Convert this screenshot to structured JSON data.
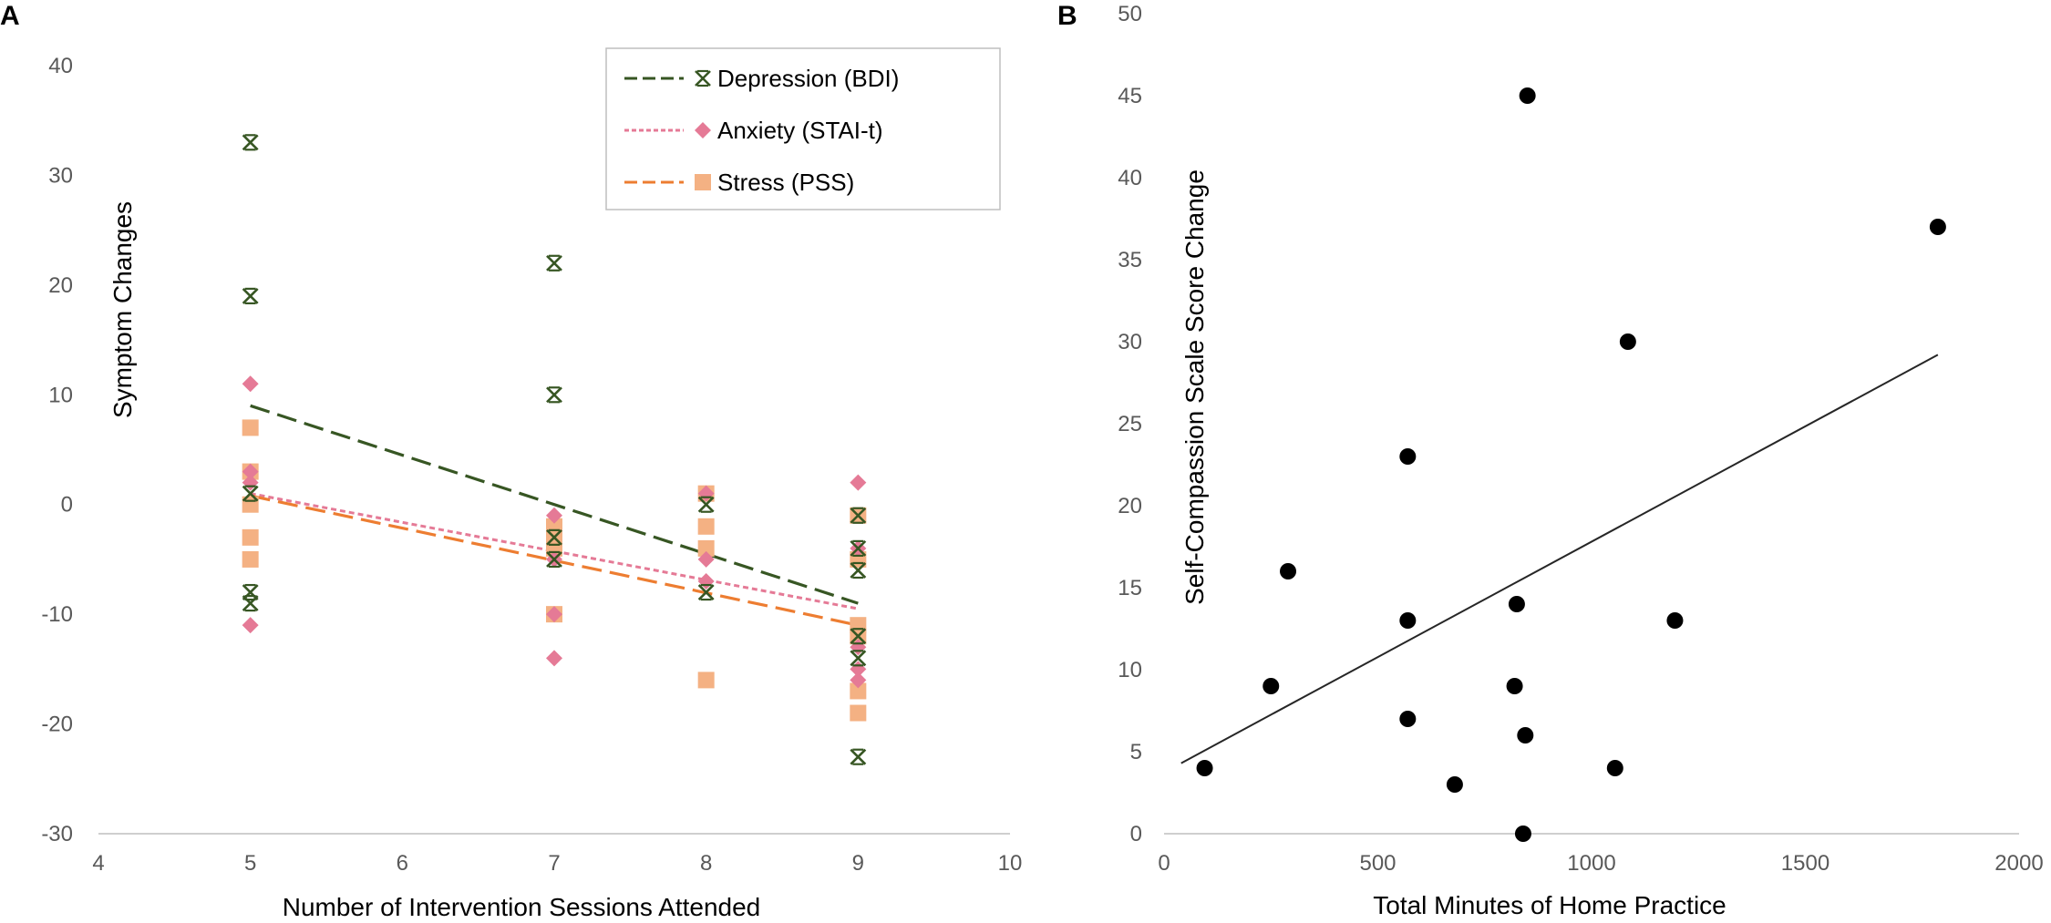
{
  "chart_data": [
    {
      "panel": "A",
      "type": "scatter",
      "xlabel": "Number of Intervention Sessions Attended",
      "ylabel": "Symptom Changes",
      "xlim": [
        4,
        10
      ],
      "ylim": [
        -30,
        40
      ],
      "xticks": [
        4,
        5,
        6,
        7,
        8,
        9,
        10
      ],
      "yticks": [
        -30,
        -20,
        -10,
        0,
        10,
        20,
        30,
        40
      ],
      "grid": false,
      "legend_position": "top-right",
      "series": [
        {
          "name": "Depression (BDI)",
          "marker": "star",
          "color": "#375623",
          "trend_color": "#375623",
          "trend_style": "long-dash",
          "points": [
            [
              5,
              33
            ],
            [
              5,
              19
            ],
            [
              5,
              1
            ],
            [
              5,
              -8
            ],
            [
              5,
              -9
            ],
            [
              7,
              22
            ],
            [
              7,
              10
            ],
            [
              7,
              -3
            ],
            [
              7,
              -5
            ],
            [
              8,
              0
            ],
            [
              8,
              -8
            ],
            [
              9,
              -1
            ],
            [
              9,
              -4
            ],
            [
              9,
              -6
            ],
            [
              9,
              -12
            ],
            [
              9,
              -14
            ],
            [
              9,
              -23
            ]
          ],
          "trendline": [
            [
              5,
              9
            ],
            [
              9,
              -9
            ]
          ]
        },
        {
          "name": "Anxiety (STAI-t)",
          "marker": "diamond",
          "color": "#E57A96",
          "trend_color": "#E57A96",
          "trend_style": "short-dash",
          "points": [
            [
              5,
              11
            ],
            [
              5,
              3
            ],
            [
              5,
              2
            ],
            [
              5,
              -11
            ],
            [
              7,
              -1
            ],
            [
              7,
              -5
            ],
            [
              7,
              -10
            ],
            [
              7,
              -14
            ],
            [
              8,
              1
            ],
            [
              8,
              -5
            ],
            [
              8,
              -7
            ],
            [
              9,
              2
            ],
            [
              9,
              -4
            ],
            [
              9,
              -13
            ],
            [
              9,
              -15
            ],
            [
              9,
              -16
            ]
          ],
          "trendline": [
            [
              5,
              1
            ],
            [
              9,
              -9.5
            ]
          ]
        },
        {
          "name": "Stress (PSS)",
          "marker": "square",
          "color": "#F4B183",
          "trend_color": "#ED7D31",
          "trend_style": "long-dash",
          "points": [
            [
              5,
              7
            ],
            [
              5,
              3
            ],
            [
              5,
              0
            ],
            [
              5,
              -3
            ],
            [
              5,
              -5
            ],
            [
              7,
              -2
            ],
            [
              7,
              -3
            ],
            [
              7,
              -4
            ],
            [
              7,
              -10
            ],
            [
              8,
              1
            ],
            [
              8,
              -2
            ],
            [
              8,
              -4
            ],
            [
              8,
              -16
            ],
            [
              9,
              -1
            ],
            [
              9,
              -5
            ],
            [
              9,
              -11
            ],
            [
              9,
              -12
            ],
            [
              9,
              -17
            ],
            [
              9,
              -19
            ]
          ],
          "trendline": [
            [
              5,
              0.8
            ],
            [
              9,
              -11
            ]
          ]
        }
      ]
    },
    {
      "panel": "B",
      "type": "scatter",
      "xlabel": "Total Minutes of Home Practice",
      "ylabel": "Self-Compassion Scale Score Change",
      "xlim": [
        0,
        2000
      ],
      "ylim": [
        0,
        50
      ],
      "xticks": [
        0,
        500,
        1000,
        1500,
        2000
      ],
      "yticks": [
        0,
        5,
        10,
        15,
        20,
        25,
        30,
        35,
        40,
        45,
        50
      ],
      "grid": false,
      "series": [
        {
          "name": "participants",
          "marker": "circle",
          "color": "#000000",
          "points": [
            [
              95,
              4
            ],
            [
              250,
              9
            ],
            [
              290,
              16
            ],
            [
              570,
              23
            ],
            [
              570,
              13
            ],
            [
              570,
              7
            ],
            [
              680,
              3
            ],
            [
              820,
              9
            ],
            [
              825,
              14
            ],
            [
              840,
              0
            ],
            [
              845,
              6
            ],
            [
              850,
              45
            ],
            [
              1055,
              4
            ],
            [
              1085,
              30
            ],
            [
              1195,
              13
            ],
            [
              1810,
              37
            ]
          ],
          "trendline": [
            [
              40,
              4.3
            ],
            [
              1810,
              29.2
            ]
          ]
        }
      ]
    }
  ]
}
